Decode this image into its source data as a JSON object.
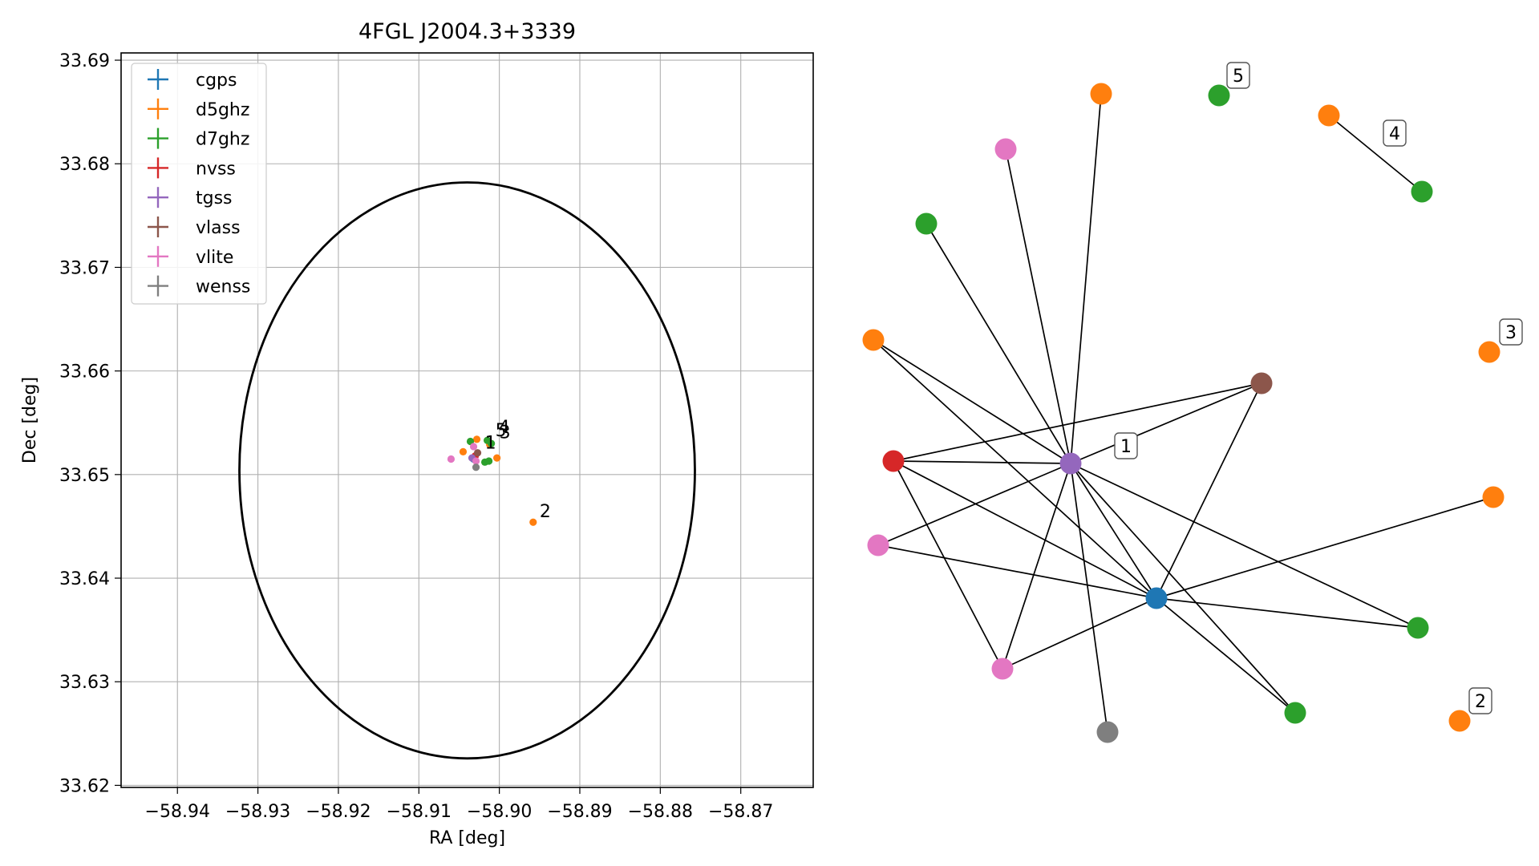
{
  "chart_data": [
    {
      "type": "scatter",
      "title": "4FGL J2004.3+3339",
      "xlabel": "RA [deg]",
      "ylabel": "Dec [deg]",
      "xlim": [
        -58.947,
        -58.861
      ],
      "ylim": [
        33.6198,
        33.6907
      ],
      "xticks": [
        -58.94,
        -58.93,
        -58.92,
        -58.91,
        -58.9,
        -58.89,
        -58.88,
        -58.87
      ],
      "xtick_labels": [
        "−58.94",
        "−58.93",
        "−58.92",
        "−58.91",
        "−58.90",
        "−58.89",
        "−58.88",
        "−58.87"
      ],
      "yticks": [
        33.62,
        33.63,
        33.64,
        33.65,
        33.66,
        33.67,
        33.68,
        33.69
      ],
      "ytick_labels": [
        "33.62",
        "33.63",
        "33.64",
        "33.65",
        "33.66",
        "33.67",
        "33.68",
        "33.69"
      ],
      "grid": true,
      "legend_position": "top-left",
      "circle": {
        "center": [
          -58.904,
          33.6504
        ],
        "radius_ra": 0.0283,
        "radius_dec": 0.0278
      },
      "series": [
        {
          "name": "cgps",
          "color": "#1f77b4",
          "points": [
            [
              -58.9032,
              33.6515
            ]
          ]
        },
        {
          "name": "d5ghz",
          "color": "#ff7f0e",
          "points": [
            [
              -58.9028,
              33.6534
            ],
            [
              -58.9045,
              33.6522
            ],
            [
              -58.9003,
              33.6516
            ],
            [
              -58.8958,
              33.6454
            ],
            [
              -58.9012,
              33.6529
            ]
          ]
        },
        {
          "name": "d7ghz",
          "color": "#2ca02c",
          "points": [
            [
              -58.9036,
              33.6532
            ],
            [
              -58.9018,
              33.6512
            ],
            [
              -58.9013,
              33.6513
            ],
            [
              -58.9015,
              33.6533
            ],
            [
              -58.901,
              33.653
            ]
          ]
        },
        {
          "name": "nvss",
          "color": "#d62728",
          "points": [
            [
              -58.903,
              33.6518
            ]
          ]
        },
        {
          "name": "tgss",
          "color": "#9467bd",
          "points": [
            [
              -58.9034,
              33.6516
            ]
          ]
        },
        {
          "name": "vlass",
          "color": "#8c564b",
          "points": [
            [
              -58.9027,
              33.6521
            ]
          ]
        },
        {
          "name": "vlite",
          "color": "#e377c2",
          "points": [
            [
              -58.906,
              33.6515
            ],
            [
              -58.9032,
              33.6527
            ],
            [
              -58.9029,
              33.6513
            ]
          ]
        },
        {
          "name": "wenss",
          "color": "#7f7f7f",
          "points": [
            [
              -58.9029,
              33.6507
            ]
          ]
        }
      ],
      "annotations": [
        {
          "text": "1",
          "x": -58.9018,
          "y": 33.6525
        },
        {
          "text": "5",
          "x": -58.9005,
          "y": 33.6537
        },
        {
          "text": "4",
          "x": -58.9001,
          "y": 33.654
        },
        {
          "text": "3",
          "x": -58.9,
          "y": 33.6535
        },
        {
          "text": "2",
          "x": -58.895,
          "y": 33.6459
        }
      ]
    },
    {
      "type": "network",
      "nodes": [
        {
          "id": "d5_a",
          "color": "#ff7f0e"
        },
        {
          "id": "d7_a",
          "color": "#2ca02c",
          "label": "5"
        },
        {
          "id": "d5_b",
          "color": "#ff7f0e"
        },
        {
          "id": "d7_b",
          "color": "#2ca02c"
        },
        {
          "id": "vlite_a",
          "color": "#e377c2"
        },
        {
          "id": "d7_c",
          "color": "#2ca02c"
        },
        {
          "id": "d5_c",
          "color": "#ff7f0e"
        },
        {
          "id": "d5_d",
          "color": "#ff7f0e",
          "label": "3"
        },
        {
          "id": "vlass",
          "color": "#8c564b"
        },
        {
          "id": "nvss",
          "color": "#d62728"
        },
        {
          "id": "tgss",
          "color": "#9467bd"
        },
        {
          "id": "d5_e",
          "color": "#ff7f0e"
        },
        {
          "id": "vlite_b",
          "color": "#e377c2"
        },
        {
          "id": "cgps",
          "color": "#1f77b4"
        },
        {
          "id": "d7_d",
          "color": "#2ca02c"
        },
        {
          "id": "vlite_c",
          "color": "#e377c2"
        },
        {
          "id": "d7_e",
          "color": "#2ca02c"
        },
        {
          "id": "wenss",
          "color": "#7f7f7f"
        },
        {
          "id": "d5_f",
          "color": "#ff7f0e",
          "label": "2"
        }
      ],
      "edges": [
        [
          "d5_b",
          "d7_b"
        ],
        [
          "d5_a",
          "tgss"
        ],
        [
          "vlite_a",
          "tgss"
        ],
        [
          "d7_c",
          "tgss"
        ],
        [
          "d5_c",
          "tgss"
        ],
        [
          "d5_c",
          "cgps"
        ],
        [
          "nvss",
          "tgss"
        ],
        [
          "nvss",
          "vlass"
        ],
        [
          "nvss",
          "cgps"
        ],
        [
          "nvss",
          "vlite_c"
        ],
        [
          "tgss",
          "vlass"
        ],
        [
          "tgss",
          "vlite_b"
        ],
        [
          "tgss",
          "cgps"
        ],
        [
          "tgss",
          "d7_d"
        ],
        [
          "tgss",
          "d7_e"
        ],
        [
          "tgss",
          "wenss"
        ],
        [
          "tgss",
          "vlite_c"
        ],
        [
          "vlass",
          "cgps"
        ],
        [
          "vlite_b",
          "cgps"
        ],
        [
          "cgps",
          "d5_e"
        ],
        [
          "cgps",
          "d7_d"
        ],
        [
          "cgps",
          "d7_e"
        ],
        [
          "cgps",
          "vlite_c"
        ]
      ],
      "group_labels": [
        {
          "text": "1",
          "near": "tgss"
        },
        {
          "text": "5",
          "near": "d7_a"
        },
        {
          "text": "4",
          "near": "d5_b"
        },
        {
          "text": "3",
          "near": "d5_d"
        },
        {
          "text": "2",
          "near": "d5_f"
        }
      ]
    }
  ]
}
